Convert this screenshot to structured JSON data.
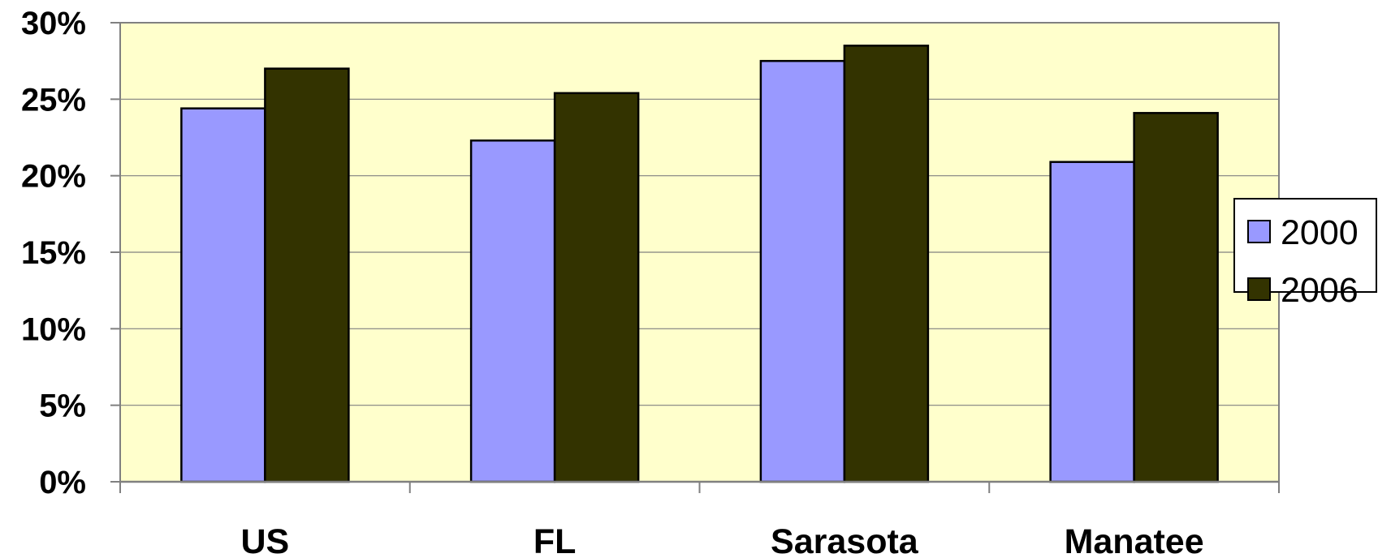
{
  "chart_data": {
    "type": "bar",
    "categories": [
      "US",
      "FL",
      "Sarasota",
      "Manatee"
    ],
    "series": [
      {
        "name": "2000",
        "values": [
          24.4,
          22.3,
          27.5,
          20.9
        ]
      },
      {
        "name": "2006",
        "values": [
          27.0,
          25.4,
          28.5,
          24.1
        ]
      }
    ],
    "y_ticks": [
      "0%",
      "5%",
      "10%",
      "15%",
      "20%",
      "25%",
      "30%"
    ],
    "ylim": [
      0,
      30
    ],
    "grid": true,
    "legend_position": "right",
    "colors": {
      "plot_background": "#FFFFCC",
      "series": [
        "#9999FF",
        "#333300"
      ],
      "gridline": "#808080",
      "axis": "#808080",
      "bar_outline": "#000000"
    }
  }
}
